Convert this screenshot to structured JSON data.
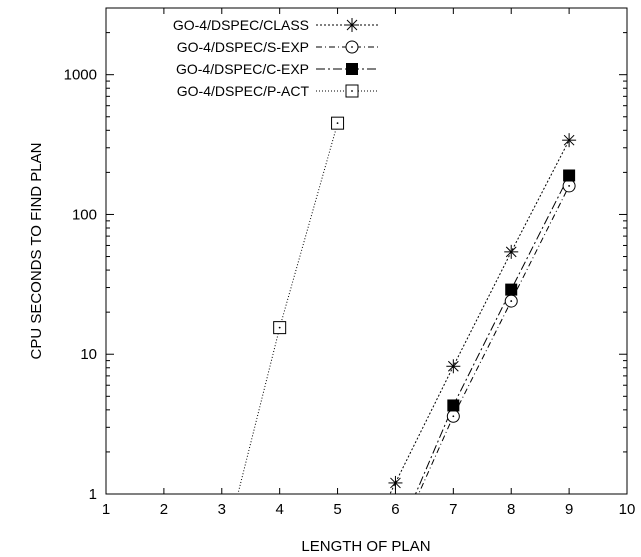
{
  "chart_data": {
    "type": "line",
    "title": "",
    "xlabel": "LENGTH OF PLAN",
    "ylabel": "CPU SECONDS TO FIND PLAN",
    "xlim": [
      1,
      10
    ],
    "ylim": [
      1,
      3000
    ],
    "yscale": "log",
    "xticks": [
      "1",
      "2",
      "3",
      "4",
      "5",
      "6",
      "7",
      "8",
      "9",
      "10"
    ],
    "yticks": [
      {
        "value": 1,
        "label": "1"
      },
      {
        "value": 10,
        "label": "10"
      },
      {
        "value": 100,
        "label": "100"
      },
      {
        "value": 1000,
        "label": "1000"
      }
    ],
    "grid": false,
    "legend_position": "top-left",
    "series": [
      {
        "name": "GO-4/DSPEC/CLASS",
        "marker": "asterisk",
        "dash": "dotted-dense",
        "points": [
          [
            6,
            1.2
          ],
          [
            7,
            8.2
          ],
          [
            8,
            54
          ],
          [
            9,
            340
          ]
        ],
        "line_from": [
          5.85,
          0.9
        ]
      },
      {
        "name": "GO-4/DSPEC/S-EXP",
        "marker": "circle-dot",
        "dash": "dash-dot",
        "points": [
          [
            7,
            3.6
          ],
          [
            8,
            24
          ],
          [
            9,
            160
          ]
        ],
        "line_from": [
          6.35,
          0.9
        ]
      },
      {
        "name": "GO-4/DSPEC/C-EXP",
        "marker": "filled-square",
        "dash": "dash-dot-long",
        "points": [
          [
            7,
            4.3
          ],
          [
            8,
            29
          ],
          [
            9,
            190
          ]
        ],
        "line_from": [
          6.3,
          0.9
        ]
      },
      {
        "name": "GO-4/DSPEC/P-ACT",
        "marker": "square-dot",
        "dash": "dotted",
        "points": [
          [
            4,
            15.5
          ],
          [
            5,
            450
          ]
        ],
        "line_from": [
          3.25,
          0.9
        ]
      }
    ]
  }
}
